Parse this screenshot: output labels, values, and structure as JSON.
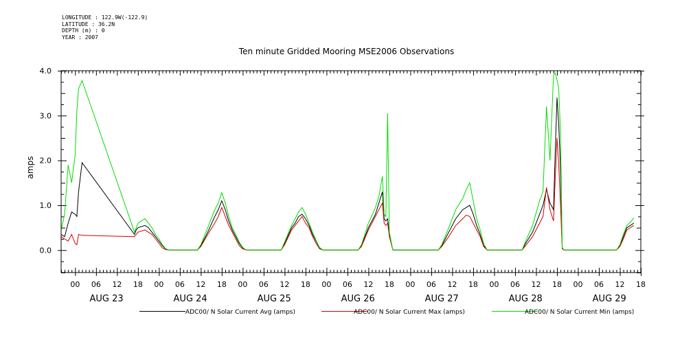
{
  "header": {
    "longitude": "LONGITUDE : 122.9W(-122.9)",
    "latitude": "LATITUDE : 36.2N",
    "depth": "DEPTH (m) : 0",
    "year": "YEAR : 2007"
  },
  "chart_data": {
    "type": "line",
    "title": "Ten minute Gridded Mooring MSE2006 Observations",
    "ylabel": "amps",
    "xlabel": "",
    "ylim": [
      -0.5,
      4.0
    ],
    "xlim": [
      -4,
      162
    ],
    "x_units": "hours from 00 AUG 23",
    "yticks": [
      "0.0",
      "1.0",
      "2.0",
      "3.0",
      "4.0"
    ],
    "ytick_values": [
      0,
      1,
      2,
      3,
      4
    ],
    "hour_tick_labels": [
      "00",
      "06",
      "12",
      "18",
      "00",
      "06",
      "12",
      "18",
      "00",
      "06",
      "12",
      "18",
      "00",
      "06",
      "12",
      "18",
      "00",
      "06",
      "12",
      "18",
      "00",
      "06",
      "12",
      "18",
      "00",
      "06",
      "12",
      "18"
    ],
    "day_labels": [
      "AUG 23",
      "AUG 24",
      "AUG 25",
      "AUG 26",
      "AUG 27",
      "AUG 28",
      "AUG 29"
    ],
    "legend_position": "bottom",
    "series": [
      {
        "name": "ADC00/ N Solar Current Avg (amps)",
        "color": "#000000",
        "points": [
          [
            -4,
            0.35
          ],
          [
            -3,
            0.3
          ],
          [
            -2,
            0.6
          ],
          [
            -1,
            0.85
          ],
          [
            0,
            0.8
          ],
          [
            0.5,
            0.75
          ],
          [
            1,
            1.3
          ],
          [
            2,
            1.95
          ],
          [
            17,
            0.35
          ],
          [
            17.5,
            0.45
          ],
          [
            18,
            0.5
          ],
          [
            20,
            0.55
          ],
          [
            21,
            0.5
          ],
          [
            22,
            0.4
          ],
          [
            23,
            0.3
          ],
          [
            24,
            0.2
          ],
          [
            25,
            0.1
          ],
          [
            26,
            0.02
          ],
          [
            27,
            0
          ],
          [
            35,
            0
          ],
          [
            36,
            0.1
          ],
          [
            38,
            0.4
          ],
          [
            40,
            0.75
          ],
          [
            41,
            0.9
          ],
          [
            42,
            1.1
          ],
          [
            43,
            0.9
          ],
          [
            44,
            0.65
          ],
          [
            45,
            0.45
          ],
          [
            46,
            0.3
          ],
          [
            47,
            0.15
          ],
          [
            48,
            0.05
          ],
          [
            49,
            0
          ],
          [
            59,
            0
          ],
          [
            60,
            0.15
          ],
          [
            62,
            0.5
          ],
          [
            63,
            0.6
          ],
          [
            64,
            0.75
          ],
          [
            65,
            0.8
          ],
          [
            66,
            0.7
          ],
          [
            67,
            0.55
          ],
          [
            68,
            0.35
          ],
          [
            69,
            0.2
          ],
          [
            70,
            0.05
          ],
          [
            71,
            0
          ],
          [
            81,
            0
          ],
          [
            82,
            0.1
          ],
          [
            84,
            0.5
          ],
          [
            86,
            0.8
          ],
          [
            87,
            1.05
          ],
          [
            88,
            1.3
          ],
          [
            88.5,
            0.7
          ],
          [
            89,
            0.65
          ],
          [
            89.5,
            0.7
          ],
          [
            90,
            0.35
          ],
          [
            91,
            0
          ],
          [
            104,
            0
          ],
          [
            105,
            0.1
          ],
          [
            107,
            0.4
          ],
          [
            109,
            0.7
          ],
          [
            111,
            0.9
          ],
          [
            112,
            0.95
          ],
          [
            113,
            1.0
          ],
          [
            114,
            0.8
          ],
          [
            115,
            0.55
          ],
          [
            116,
            0.35
          ],
          [
            117,
            0.1
          ],
          [
            118,
            0
          ],
          [
            128,
            0
          ],
          [
            129,
            0.15
          ],
          [
            131,
            0.4
          ],
          [
            133,
            0.8
          ],
          [
            134,
            1.0
          ],
          [
            135,
            1.35
          ],
          [
            136,
            1.05
          ],
          [
            137,
            0.9
          ],
          [
            137.5,
            2.2
          ],
          [
            138,
            3.4
          ],
          [
            138.5,
            2.8
          ],
          [
            139,
            1.8
          ],
          [
            139.5,
            0.05
          ],
          [
            140,
            0
          ],
          [
            155,
            0
          ],
          [
            156,
            0.1
          ],
          [
            157,
            0.3
          ],
          [
            158,
            0.5
          ],
          [
            159,
            0.55
          ],
          [
            160,
            0.6
          ]
        ]
      },
      {
        "name": "ADC00/ N Solar Current Max (amps)",
        "color": "#d00000",
        "points": [
          [
            -4,
            0.3
          ],
          [
            -3,
            0.25
          ],
          [
            -2,
            0.2
          ],
          [
            -1,
            0.35
          ],
          [
            0,
            0.15
          ],
          [
            0.5,
            0.12
          ],
          [
            1,
            0.35
          ],
          [
            2,
            0.33
          ],
          [
            17,
            0.3
          ],
          [
            17.5,
            0.35
          ],
          [
            18,
            0.4
          ],
          [
            20,
            0.45
          ],
          [
            21,
            0.4
          ],
          [
            22,
            0.35
          ],
          [
            23,
            0.25
          ],
          [
            24,
            0.15
          ],
          [
            25,
            0.05
          ],
          [
            26,
            0.01
          ],
          [
            27,
            0
          ],
          [
            35,
            0
          ],
          [
            36,
            0.08
          ],
          [
            38,
            0.35
          ],
          [
            40,
            0.6
          ],
          [
            41,
            0.75
          ],
          [
            42,
            0.95
          ],
          [
            43,
            0.75
          ],
          [
            44,
            0.55
          ],
          [
            45,
            0.4
          ],
          [
            46,
            0.25
          ],
          [
            47,
            0.1
          ],
          [
            48,
            0.03
          ],
          [
            49,
            0
          ],
          [
            59,
            0
          ],
          [
            60,
            0.12
          ],
          [
            62,
            0.45
          ],
          [
            63,
            0.55
          ],
          [
            64,
            0.65
          ],
          [
            65,
            0.75
          ],
          [
            66,
            0.6
          ],
          [
            67,
            0.5
          ],
          [
            68,
            0.3
          ],
          [
            69,
            0.15
          ],
          [
            70,
            0.03
          ],
          [
            71,
            0
          ],
          [
            81,
            0
          ],
          [
            82,
            0.08
          ],
          [
            84,
            0.45
          ],
          [
            86,
            0.75
          ],
          [
            87,
            0.9
          ],
          [
            88,
            1.05
          ],
          [
            88.5,
            0.6
          ],
          [
            89,
            0.55
          ],
          [
            89.5,
            0.6
          ],
          [
            90,
            0.3
          ],
          [
            91,
            0
          ],
          [
            104,
            0
          ],
          [
            105,
            0.08
          ],
          [
            107,
            0.3
          ],
          [
            109,
            0.55
          ],
          [
            111,
            0.7
          ],
          [
            112,
            0.78
          ],
          [
            113,
            0.75
          ],
          [
            114,
            0.6
          ],
          [
            115,
            0.45
          ],
          [
            116,
            0.3
          ],
          [
            117,
            0.08
          ],
          [
            118,
            0
          ],
          [
            128,
            0
          ],
          [
            129,
            0.1
          ],
          [
            131,
            0.3
          ],
          [
            133,
            0.6
          ],
          [
            134,
            0.75
          ],
          [
            135,
            1.4
          ],
          [
            136,
            0.9
          ],
          [
            137,
            0.65
          ],
          [
            137.5,
            1.6
          ],
          [
            138,
            2.5
          ],
          [
            138.5,
            1.9
          ],
          [
            139,
            1.0
          ],
          [
            139.5,
            0.03
          ],
          [
            140,
            0
          ],
          [
            155,
            0
          ],
          [
            156,
            0.08
          ],
          [
            157,
            0.25
          ],
          [
            158,
            0.45
          ],
          [
            159,
            0.5
          ],
          [
            160,
            0.55
          ]
        ]
      },
      {
        "name": "ADC00/ N Solar Current Min (amps)",
        "color": "#00dd00",
        "points": [
          [
            -4,
            0.45
          ],
          [
            -3,
            0.8
          ],
          [
            -2,
            1.9
          ],
          [
            -1,
            1.5
          ],
          [
            0,
            2.1
          ],
          [
            0.5,
            3.1
          ],
          [
            1,
            3.6
          ],
          [
            2,
            3.78
          ],
          [
            17,
            0.4
          ],
          [
            17.5,
            0.5
          ],
          [
            18,
            0.6
          ],
          [
            20,
            0.7
          ],
          [
            21,
            0.6
          ],
          [
            22,
            0.5
          ],
          [
            23,
            0.35
          ],
          [
            24,
            0.25
          ],
          [
            25,
            0.12
          ],
          [
            26,
            0.03
          ],
          [
            27,
            0
          ],
          [
            35,
            0
          ],
          [
            36,
            0.12
          ],
          [
            38,
            0.5
          ],
          [
            40,
            0.9
          ],
          [
            41,
            1.05
          ],
          [
            42,
            1.28
          ],
          [
            43,
            1.05
          ],
          [
            44,
            0.75
          ],
          [
            45,
            0.5
          ],
          [
            46,
            0.35
          ],
          [
            47,
            0.18
          ],
          [
            48,
            0.06
          ],
          [
            49,
            0
          ],
          [
            59,
            0
          ],
          [
            60,
            0.18
          ],
          [
            62,
            0.55
          ],
          [
            63,
            0.7
          ],
          [
            64,
            0.85
          ],
          [
            65,
            0.95
          ],
          [
            66,
            0.8
          ],
          [
            67,
            0.6
          ],
          [
            68,
            0.4
          ],
          [
            69,
            0.22
          ],
          [
            70,
            0.06
          ],
          [
            71,
            0
          ],
          [
            81,
            0
          ],
          [
            82,
            0.12
          ],
          [
            84,
            0.6
          ],
          [
            86,
            0.95
          ],
          [
            87,
            1.2
          ],
          [
            88,
            1.65
          ],
          [
            88.5,
            0.8
          ],
          [
            89,
            0.75
          ],
          [
            89.5,
            3.05
          ],
          [
            90,
            0.4
          ],
          [
            91,
            0
          ],
          [
            104,
            0
          ],
          [
            105,
            0.12
          ],
          [
            107,
            0.5
          ],
          [
            109,
            0.9
          ],
          [
            111,
            1.15
          ],
          [
            112,
            1.35
          ],
          [
            113,
            1.5
          ],
          [
            114,
            1.1
          ],
          [
            115,
            0.7
          ],
          [
            116,
            0.45
          ],
          [
            117,
            0.15
          ],
          [
            118,
            0
          ],
          [
            128,
            0
          ],
          [
            129,
            0.2
          ],
          [
            131,
            0.55
          ],
          [
            133,
            1.1
          ],
          [
            134,
            1.3
          ],
          [
            135,
            3.2
          ],
          [
            136,
            2.0
          ],
          [
            137,
            3.9
          ],
          [
            137.5,
            3.95
          ],
          [
            138,
            3.8
          ],
          [
            138.5,
            3.6
          ],
          [
            139,
            2.6
          ],
          [
            139.5,
            0.06
          ],
          [
            140,
            0
          ],
          [
            155,
            0
          ],
          [
            156,
            0.12
          ],
          [
            157,
            0.35
          ],
          [
            158,
            0.55
          ],
          [
            159,
            0.62
          ],
          [
            160,
            0.72
          ]
        ]
      }
    ]
  }
}
